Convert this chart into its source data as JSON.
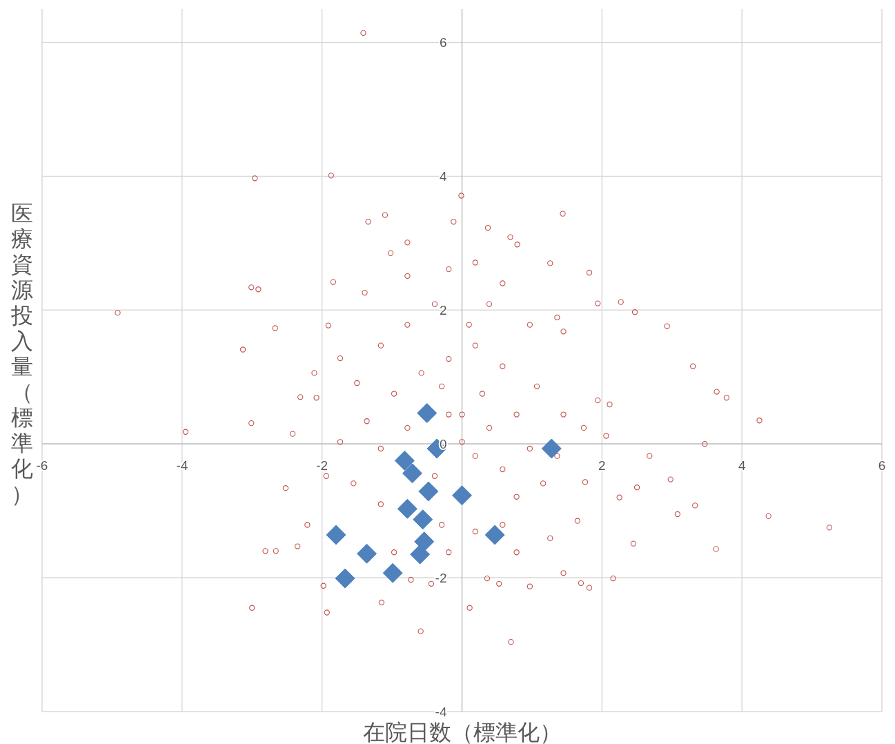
{
  "chart_data": {
    "type": "scatter",
    "xlabel": "在院日数（標準化）",
    "ylabel": "医療資源投入量（標準化）",
    "xlim": [
      -6,
      6
    ],
    "ylim": [
      -4,
      6.5
    ],
    "xticks": [
      -6,
      -4,
      -2,
      2,
      4,
      6
    ],
    "yticks": [
      -4,
      -2,
      0,
      2,
      4,
      6
    ],
    "grid": true,
    "series": [
      {
        "color": "#c0504d",
        "marker": "circle",
        "x": [
          -1.41,
          -2.96,
          -1.87,
          -4.92,
          -3.01,
          -2.91,
          -2.67,
          -3.13,
          -3.01,
          -3.95,
          5.25,
          4.38,
          4.25,
          3.64,
          3.78,
          3.3,
          2.93,
          3.63,
          3.47,
          0.7,
          -0.59,
          -3.0,
          -1.93,
          0.11,
          1.44,
          -0.01,
          -1.34,
          -1.1,
          -0.12,
          0.37,
          0.69,
          0.79,
          -0.78,
          1.82,
          2.27,
          2.47,
          1.94,
          1.26,
          2.68,
          2.5,
          2.98,
          3.08,
          3.33,
          2.25,
          2.45,
          2.16,
          1.82,
          1.7,
          0.97,
          0.53,
          0.36,
          -0.73,
          -0.44,
          -1.15,
          -1.98,
          -2.81,
          -2.66,
          -2.35,
          -2.21,
          -2.52,
          -2.42,
          -2.31,
          -2.08,
          -2.11,
          -1.91,
          -1.84,
          -1.39,
          -1.02,
          -1.74,
          -1.5,
          1.94,
          2.11,
          2.06,
          1.76,
          1.65,
          1.16,
          0.78,
          0.58,
          0.19,
          -0.29,
          -1.16,
          -1.55,
          -1.94,
          -1.74,
          -1.36,
          -0.97,
          -0.58,
          -0.19,
          0.19,
          0.58,
          1.07,
          1.45,
          1.74,
          0.78,
          0.39,
          -0.19,
          -0.78,
          0.19,
          0.58,
          -0.39,
          -0.78,
          -0.39,
          0.1,
          0.39,
          -0.78,
          -0.19,
          0.19,
          0.58,
          0.97,
          1.36,
          1.45,
          -1.16,
          -1.16,
          0.97,
          1.36,
          0.0,
          0.0,
          -0.29,
          0.29,
          -0.97,
          -0.19,
          0.78,
          1.26,
          1.45
        ],
        "values": [
          6.14,
          3.97,
          4.01,
          1.96,
          2.34,
          2.31,
          1.73,
          1.41,
          0.31,
          0.18,
          -1.25,
          -1.08,
          0.35,
          0.78,
          0.69,
          1.16,
          1.76,
          -1.57,
          0.0,
          -2.96,
          -2.8,
          -2.45,
          -2.52,
          -2.45,
          3.44,
          3.71,
          3.32,
          3.42,
          3.32,
          3.23,
          3.09,
          2.98,
          3.01,
          2.56,
          2.12,
          1.97,
          2.1,
          2.7,
          -0.18,
          -0.65,
          -0.53,
          -1.05,
          -0.92,
          -0.8,
          -1.49,
          -2.01,
          -2.15,
          -2.08,
          -2.13,
          -2.09,
          -2.01,
          -2.03,
          -2.09,
          -2.37,
          -2.12,
          -1.6,
          -1.6,
          -1.53,
          -1.21,
          -0.66,
          0.15,
          0.7,
          0.69,
          1.06,
          1.77,
          2.42,
          2.26,
          2.85,
          1.28,
          0.91,
          0.65,
          0.59,
          0.12,
          -0.57,
          -1.15,
          -0.59,
          -0.79,
          -1.21,
          -1.31,
          -1.21,
          -0.9,
          -0.59,
          -0.48,
          0.03,
          0.34,
          0.75,
          1.06,
          1.27,
          1.47,
          1.16,
          0.86,
          0.44,
          0.24,
          0.44,
          0.24,
          0.44,
          0.24,
          -0.18,
          -0.38,
          -0.48,
          1.78,
          2.09,
          1.78,
          2.09,
          2.51,
          2.61,
          2.71,
          2.4,
          1.78,
          1.89,
          1.68,
          1.47,
          -0.07,
          -0.07,
          -0.18,
          0.44,
          0.03,
          0.86,
          0.75,
          -1.62,
          -1.62,
          -1.62,
          -1.41,
          -1.93
        ]
      },
      {
        "color": "#4f81bd",
        "marker": "diamond",
        "x": [
          -0.5,
          1.28,
          -0.36,
          -0.82,
          -0.71,
          -0.48,
          0.0,
          -0.78,
          -0.56,
          -1.8,
          0.47,
          -0.54,
          -1.36,
          -0.6,
          -0.99,
          -1.67
        ],
        "values": [
          0.46,
          -0.07,
          -0.07,
          -0.25,
          -0.44,
          -0.71,
          -0.77,
          -0.97,
          -1.13,
          -1.36,
          -1.36,
          -1.46,
          -1.64,
          -1.65,
          -1.93,
          -2.01
        ]
      }
    ]
  }
}
